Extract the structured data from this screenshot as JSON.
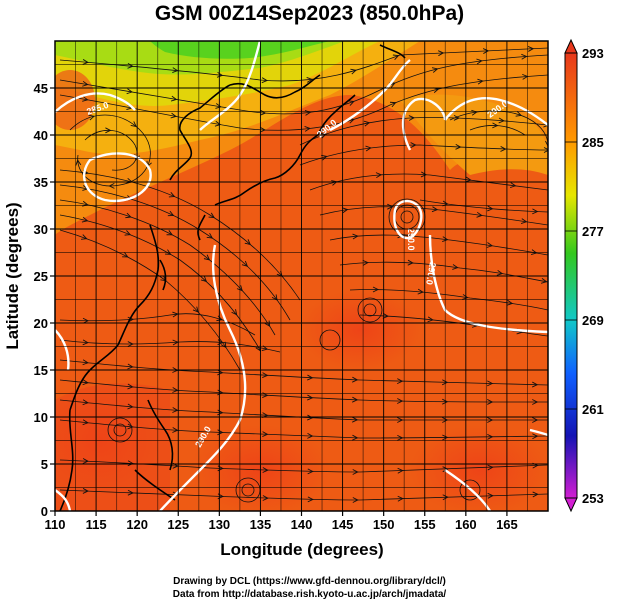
{
  "title": "GSM 00Z14Sep2023 (850.0hPa)",
  "xlabel": "Longitude (degrees)",
  "ylabel": "Latitude  (degrees)",
  "credit_line1": "Drawing by DCL (https://www.gfd-dennou.org/library/dcl/)",
  "credit_line2": "Data from http://database.rish.kyoto-u.ac.jp/arch/jmadata/",
  "colorbar": {
    "ticks": [
      "293",
      "285",
      "277",
      "269",
      "261",
      "253"
    ],
    "range": [
      253,
      293
    ]
  },
  "contour_labels": [
    "285.0",
    "290.0",
    "290.0",
    "290.0",
    "290.0",
    "290.0"
  ],
  "chart_data": {
    "type": "heatmap",
    "title": "GSM 00Z14Sep2023 (850.0hPa)",
    "xlabel": "Longitude (degrees)",
    "ylabel": "Latitude  (degrees)",
    "xlim": [
      110,
      170
    ],
    "ylim": [
      0,
      50
    ],
    "xticks": [
      "110",
      "115",
      "120",
      "125",
      "130",
      "135",
      "140",
      "145",
      "150",
      "155",
      "160",
      "165"
    ],
    "yticks": [
      "0",
      "5",
      "10",
      "15",
      "20",
      "25",
      "30",
      "35",
      "40",
      "45"
    ],
    "grid": true,
    "colorbar_range": [
      253,
      293
    ],
    "colorbar_ticks": [
      293,
      285,
      277,
      269,
      261,
      253
    ]
  }
}
